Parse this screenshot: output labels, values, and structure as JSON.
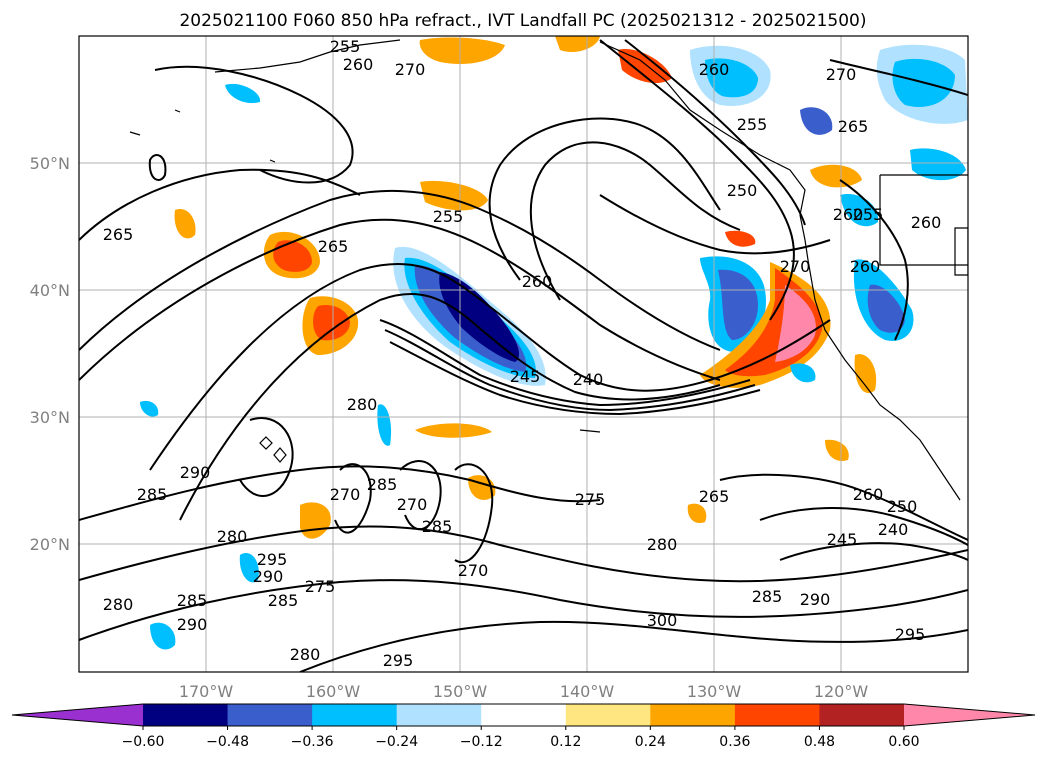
{
  "title": "2025021100 F060 850 hPa refract., IVT Landfall PC (2025021312 - 2025021500)",
  "lon_labels": [
    "170°W",
    "160°W",
    "150°W",
    "140°W",
    "130°W",
    "120°W"
  ],
  "lat_labels": [
    "50°N",
    "40°N",
    "30°N",
    "20°N"
  ],
  "colorbar": {
    "ticks": [
      "−0.60",
      "−0.48",
      "−0.36",
      "−0.24",
      "−0.12",
      "0.12",
      "0.24",
      "0.36",
      "0.48",
      "0.60"
    ],
    "colors": [
      "#9b30d0",
      "#000080",
      "#3a5fcd",
      "#00bfff",
      "#b0e2ff",
      "#ffffff",
      "#ffe680",
      "#ffa500",
      "#ff4500",
      "#b22222",
      "#ff88aa"
    ]
  },
  "contour_labels": [
    {
      "text": "255"
    },
    {
      "text": "260"
    },
    {
      "text": "270"
    },
    {
      "text": "260"
    },
    {
      "text": "270"
    },
    {
      "text": "265"
    },
    {
      "text": "255"
    },
    {
      "text": "250"
    },
    {
      "text": "265"
    },
    {
      "text": "255"
    },
    {
      "text": "265"
    },
    {
      "text": "260"
    },
    {
      "text": "255"
    },
    {
      "text": "260"
    },
    {
      "text": "270"
    },
    {
      "text": "260"
    },
    {
      "text": "240"
    },
    {
      "text": "245"
    },
    {
      "text": "280"
    },
    {
      "text": "290"
    },
    {
      "text": "285"
    },
    {
      "text": "270"
    },
    {
      "text": "285"
    },
    {
      "text": "270"
    },
    {
      "text": "285"
    },
    {
      "text": "275"
    },
    {
      "text": "265"
    },
    {
      "text": "260"
    },
    {
      "text": "250"
    },
    {
      "text": "245"
    },
    {
      "text": "240"
    },
    {
      "text": "280"
    },
    {
      "text": "295"
    },
    {
      "text": "290"
    },
    {
      "text": "275"
    },
    {
      "text": "285"
    },
    {
      "text": "280"
    },
    {
      "text": "285"
    },
    {
      "text": "290"
    },
    {
      "text": "270"
    },
    {
      "text": "285"
    },
    {
      "text": "290"
    },
    {
      "text": "300"
    },
    {
      "text": "295"
    },
    {
      "text": "280"
    },
    {
      "text": "295"
    },
    {
      "text": "280"
    },
    {
      "text": "260"
    }
  ]
}
